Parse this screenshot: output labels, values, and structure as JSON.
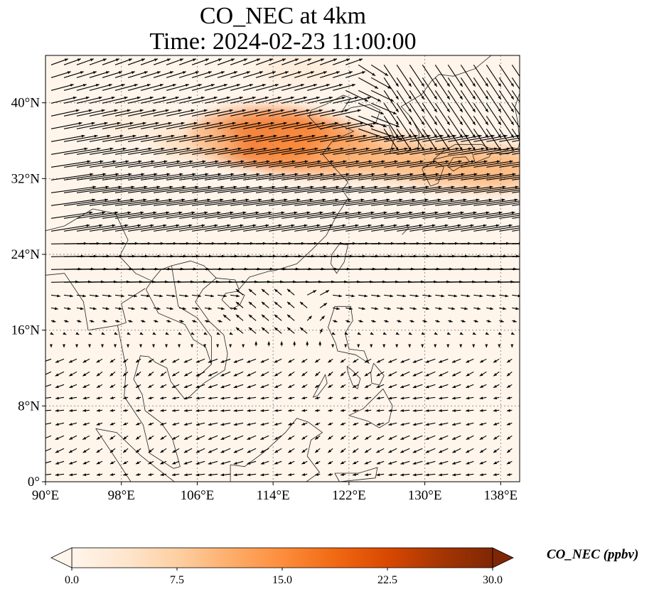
{
  "title": {
    "line1": "CO_NEC at 4km",
    "line2": "Time: 2024-02-23 11:00:00"
  },
  "map": {
    "lon_range": [
      90,
      140
    ],
    "lat_range": [
      0,
      45
    ],
    "lon_ticks": [
      {
        "value": 90,
        "label": "90°E"
      },
      {
        "value": 98,
        "label": "98°E"
      },
      {
        "value": 106,
        "label": "106°E"
      },
      {
        "value": 114,
        "label": "114°E"
      },
      {
        "value": 122,
        "label": "122°E"
      },
      {
        "value": 130,
        "label": "130°E"
      },
      {
        "value": 138,
        "label": "138°E"
      }
    ],
    "lat_ticks": [
      {
        "value": 0,
        "label": "0°"
      },
      {
        "value": 8,
        "label": "8°N"
      },
      {
        "value": 16,
        "label": "16°N"
      },
      {
        "value": 24,
        "label": "24°N"
      },
      {
        "value": 32,
        "label": "32°N"
      },
      {
        "value": 40,
        "label": "40°N"
      }
    ],
    "gridlines": true,
    "field": "CO_NEC",
    "plume": {
      "description_points": [
        {
          "lon": 112.5,
          "lat": 36.5,
          "value": 18
        },
        {
          "lon": 115.5,
          "lat": 36.0,
          "value": 19
        },
        {
          "lon": 119.0,
          "lat": 35.0,
          "value": 15
        },
        {
          "lon": 124.0,
          "lat": 34.5,
          "value": 12
        },
        {
          "lon": 129.5,
          "lat": 33.8,
          "value": 11
        },
        {
          "lon": 134.5,
          "lat": 33.2,
          "value": 12
        },
        {
          "lon": 139.0,
          "lat": 33.0,
          "value": 11
        },
        {
          "lon": 106.0,
          "lat": 35.8,
          "value": 6
        },
        {
          "lon": 100.0,
          "lat": 37.5,
          "value": 4
        },
        {
          "lon": 116.5,
          "lat": 43.5,
          "value": 5
        }
      ]
    },
    "colors": {
      "background": "#fff5eb",
      "coast": "#222222",
      "grid": "#888888",
      "arrow": "#000000"
    }
  },
  "colorbar": {
    "min": 0.0,
    "max": 30.0,
    "ticks": [
      "0.0",
      "7.5",
      "15.0",
      "22.5",
      "30.0"
    ],
    "label": "CO_NEC (ppbv)",
    "extend": "both",
    "colormap": [
      "#fff5eb",
      "#fee6ce",
      "#fdd0a2",
      "#fdae6b",
      "#fd8d3c",
      "#f16913",
      "#d94801",
      "#a63603",
      "#7f2704"
    ]
  }
}
